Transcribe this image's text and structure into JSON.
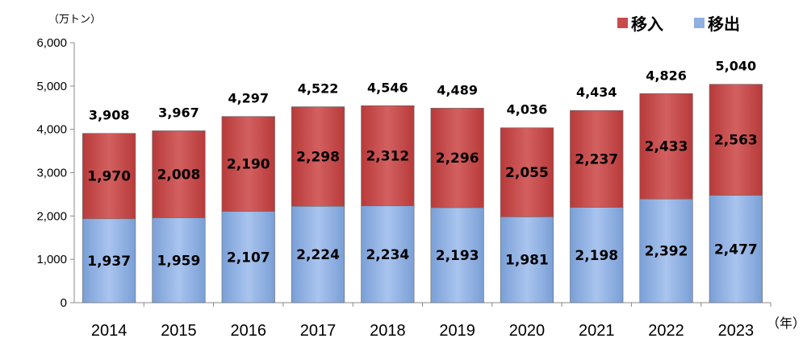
{
  "chart_data": {
    "type": "bar",
    "stacked": true,
    "categories": [
      "2014",
      "2015",
      "2016",
      "2017",
      "2018",
      "2019",
      "2020",
      "2021",
      "2022",
      "2023"
    ],
    "series": [
      {
        "name": "移出",
        "color": "#8fb0e0",
        "values": [
          1937,
          1959,
          2107,
          2224,
          2234,
          2193,
          1981,
          2198,
          2392,
          2477
        ]
      },
      {
        "name": "移入",
        "color": "#c84b4b",
        "values": [
          1970,
          2008,
          2190,
          2298,
          2312,
          2296,
          2055,
          2237,
          2433,
          2563
        ]
      }
    ],
    "totals": [
      3908,
      3967,
      4297,
      4522,
      4546,
      4489,
      4036,
      4434,
      4826,
      5040
    ],
    "y_unit_label": "（万トン）",
    "x_unit_label": "（年）",
    "ylim": [
      0,
      6000
    ],
    "yticks": [
      0,
      1000,
      2000,
      3000,
      4000,
      5000,
      6000
    ],
    "grid": false,
    "legend": {
      "position": "top-right",
      "items": [
        "移入",
        "移出"
      ]
    }
  }
}
